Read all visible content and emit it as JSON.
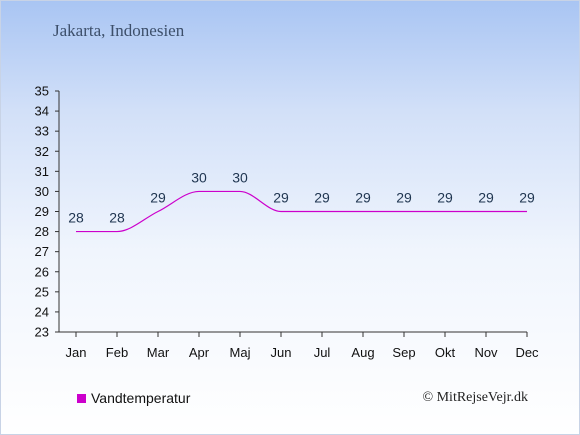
{
  "chart_data": {
    "type": "line",
    "title": "Jakarta, Indonesien",
    "categories": [
      "Jan",
      "Feb",
      "Mar",
      "Apr",
      "Maj",
      "Jun",
      "Jul",
      "Aug",
      "Sep",
      "Okt",
      "Nov",
      "Dec"
    ],
    "series": [
      {
        "name": "Vandtemperatur",
        "values": [
          28,
          28,
          29,
          30,
          30,
          29,
          29,
          29,
          29,
          29,
          29,
          29
        ],
        "color": "#cc00cc"
      }
    ],
    "ylim": [
      23,
      35
    ],
    "yticks": [
      23,
      24,
      25,
      26,
      27,
      28,
      29,
      30,
      31,
      32,
      33,
      34,
      35
    ],
    "grid": false,
    "legend": "bottom-left"
  },
  "footer": {
    "credit": "© MitRejseVejr.dk"
  }
}
